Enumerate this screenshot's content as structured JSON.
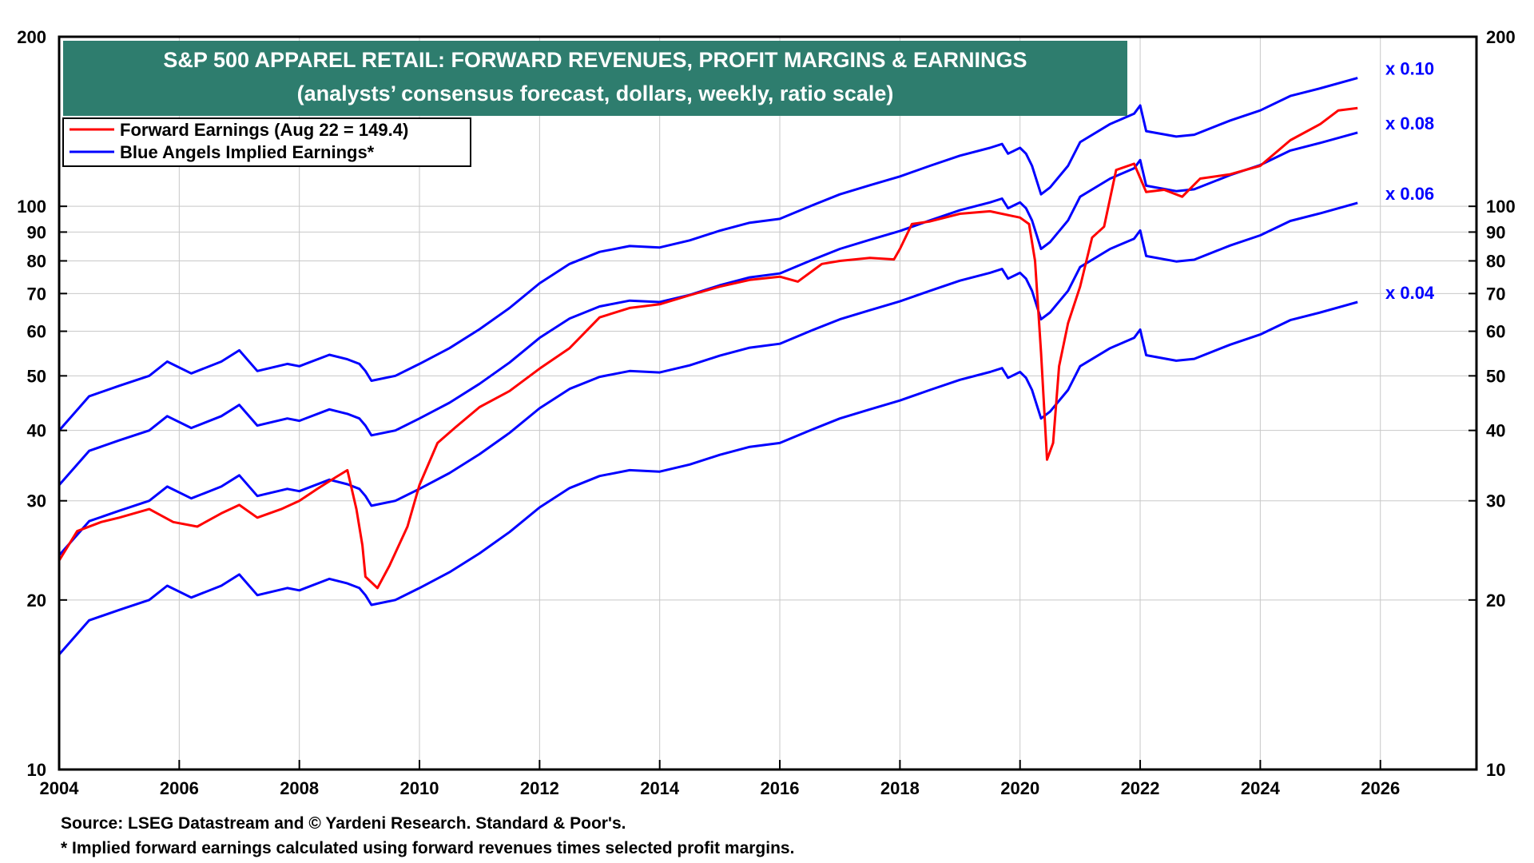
{
  "chart_data": {
    "type": "line",
    "title": "S&P 500 APPAREL RETAIL: FORWARD REVENUES, PROFIT MARGINS & EARNINGS",
    "subtitle": "(analysts’ consensus forecast, dollars, weekly, ratio scale)",
    "y_scale": "log",
    "ylim": [
      10,
      200
    ],
    "xlim": [
      2004,
      2027.6
    ],
    "y_ticks": [
      "200",
      "100",
      "90",
      "80",
      "70",
      "60",
      "50",
      "40",
      "30",
      "20",
      "10"
    ],
    "x_ticks": [
      "2004",
      "2006",
      "2008",
      "2010",
      "2012",
      "2014",
      "2016",
      "2018",
      "2020",
      "2022",
      "2024",
      "2026"
    ],
    "legend": {
      "placement": "top-left",
      "entries": [
        {
          "label": "Forward Earnings (Aug 22 = 149.4)",
          "color": "#ff0000"
        },
        {
          "label": "Blue Angels Implied Earnings*",
          "color": "#0000ff"
        }
      ]
    },
    "forward_earnings": {
      "color": "#ff0000",
      "x": [
        2004.0,
        2004.3,
        2004.7,
        2005.0,
        2005.5,
        2005.9,
        2006.3,
        2006.7,
        2007.0,
        2007.3,
        2007.7,
        2008.0,
        2008.3,
        2008.6,
        2008.8,
        2008.95,
        2009.05,
        2009.1,
        2009.3,
        2009.5,
        2009.8,
        2010.0,
        2010.3,
        2010.6,
        2011.0,
        2011.5,
        2012.0,
        2012.5,
        2013.0,
        2013.5,
        2014.0,
        2014.5,
        2015.0,
        2015.5,
        2016.0,
        2016.3,
        2016.7,
        2017.0,
        2017.5,
        2017.9,
        2018.0,
        2018.2,
        2018.5,
        2019.0,
        2019.5,
        2020.0,
        2020.15,
        2020.25,
        2020.35,
        2020.45,
        2020.55,
        2020.65,
        2020.8,
        2021.0,
        2021.2,
        2021.4,
        2021.6,
        2021.9,
        2022.1,
        2022.4,
        2022.7,
        2023.0,
        2023.5,
        2024.0,
        2024.5,
        2025.0,
        2025.3,
        2025.62
      ],
      "values": [
        23.5,
        26.5,
        27.5,
        28.0,
        29.0,
        27.5,
        27.0,
        28.5,
        29.5,
        28.0,
        29.0,
        30.0,
        31.5,
        33.0,
        34.0,
        29.0,
        25.0,
        22.0,
        21.0,
        23.0,
        27.0,
        32.0,
        38.0,
        40.5,
        44.0,
        47.0,
        51.5,
        56.0,
        63.5,
        66.0,
        67.0,
        69.5,
        72.0,
        74.0,
        75.0,
        73.5,
        79.0,
        80.0,
        81.0,
        80.5,
        84.0,
        93.0,
        94.0,
        97.0,
        98.0,
        95.5,
        93.0,
        80.0,
        55.0,
        35.5,
        38.0,
        52.0,
        62.0,
        72.0,
        88.0,
        92.0,
        116.0,
        119.0,
        106.0,
        107.0,
        104.0,
        112.0,
        114.0,
        118.0,
        131.0,
        140.0,
        148.0,
        149.4
      ]
    },
    "implied_earnings": {
      "color": "#0000ff",
      "x": [
        2004.0,
        2004.5,
        2005.0,
        2005.5,
        2005.8,
        2006.2,
        2006.7,
        2007.0,
        2007.3,
        2007.8,
        2008.0,
        2008.5,
        2008.8,
        2009.0,
        2009.1,
        2009.2,
        2009.6,
        2010.0,
        2010.5,
        2011.0,
        2011.5,
        2012.0,
        2012.5,
        2013.0,
        2013.5,
        2014.0,
        2014.5,
        2015.0,
        2015.5,
        2016.0,
        2016.5,
        2017.0,
        2017.5,
        2018.0,
        2018.5,
        2019.0,
        2019.5,
        2019.7,
        2019.8,
        2020.0,
        2020.1,
        2020.2,
        2020.35,
        2020.5,
        2020.8,
        2021.0,
        2021.5,
        2021.9,
        2022.0,
        2022.1,
        2022.6,
        2022.9,
        2023.5,
        2024.0,
        2024.5,
        2025.0,
        2025.62
      ],
      "revenue": [
        400,
        460,
        480,
        500,
        530,
        505,
        530,
        555,
        510,
        525,
        520,
        545,
        535,
        525,
        510,
        490,
        500,
        525,
        560,
        605,
        660,
        730,
        790,
        830,
        850,
        845,
        870,
        905,
        935,
        950,
        1000,
        1050,
        1090,
        1130,
        1180,
        1230,
        1270,
        1290,
        1240,
        1270,
        1240,
        1180,
        1050,
        1080,
        1180,
        1300,
        1400,
        1460,
        1510,
        1360,
        1330,
        1340,
        1420,
        1480,
        1570,
        1620,
        1690
      ]
    },
    "multipliers": [
      "x 0.10",
      "x 0.08",
      "x 0.06",
      "x 0.04"
    ],
    "margins": [
      0.1,
      0.08,
      0.06,
      0.04
    ]
  },
  "footer": {
    "source": "Source: LSEG Datastream and © Yardeni Research. Standard & Poor's.",
    "note": "* Implied forward earnings calculated using forward revenues times selected profit margins."
  }
}
